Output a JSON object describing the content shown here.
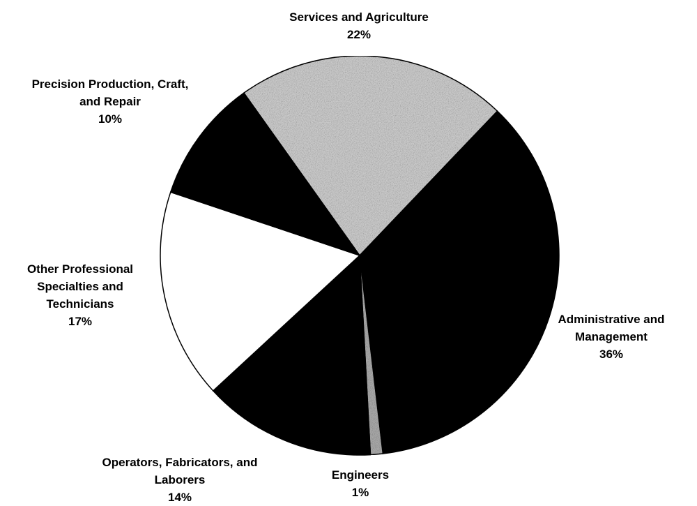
{
  "chart_data": {
    "type": "pie",
    "categories": [
      "Services and Agriculture",
      "Administrative and Management",
      "Engineers",
      "Operators, Fabricators, and Laborers",
      "Other Professional Specialties and Technicians",
      "Precision Production, Craft, and Repair"
    ],
    "values": [
      22,
      36,
      1,
      14,
      17,
      10
    ],
    "value_labels": [
      "22%",
      "36%",
      "1%",
      "14%",
      "17%",
      "10%"
    ],
    "colors": [
      "#c9c9c9",
      "#000000",
      "#a8a8a8",
      "#000000",
      "#ffffff",
      "#000000"
    ]
  }
}
